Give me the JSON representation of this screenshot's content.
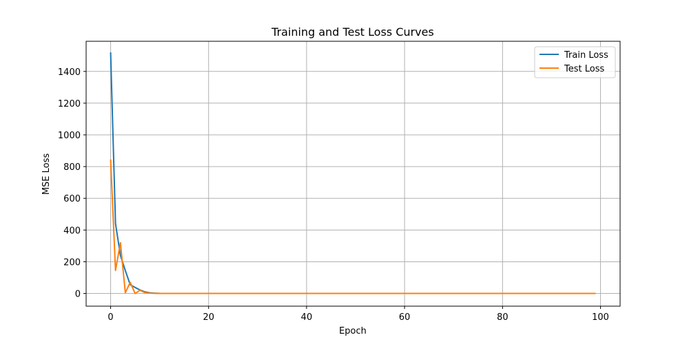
{
  "chart_data": {
    "type": "line",
    "title": "Training and Test Loss Curves",
    "xlabel": "Epoch",
    "ylabel": "MSE Loss",
    "xlim": [
      -5,
      104
    ],
    "ylim": [
      -80,
      1590
    ],
    "xticks": [
      0,
      20,
      40,
      60,
      80,
      100
    ],
    "yticks": [
      0,
      200,
      400,
      600,
      800,
      1000,
      1200,
      1400
    ],
    "grid": true,
    "legend_position": "top-right",
    "series": [
      {
        "name": "Train Loss",
        "color": "#1f77b4",
        "x": [
          0,
          1,
          2,
          3,
          4,
          5,
          6,
          7,
          8,
          9,
          10,
          12,
          15,
          20,
          30,
          40,
          50,
          60,
          70,
          80,
          90,
          99
        ],
        "y": [
          1520,
          440,
          240,
          145,
          55,
          38,
          22,
          10,
          4,
          2,
          1,
          0.5,
          0.3,
          0.2,
          0.1,
          0.1,
          0.1,
          0.1,
          0.1,
          0.1,
          0.1,
          0.1
        ]
      },
      {
        "name": "Test Loss",
        "color": "#ff7f0e",
        "x": [
          0,
          1,
          2,
          3,
          4,
          5,
          6,
          7,
          8,
          9,
          10,
          12,
          15,
          20,
          30,
          40,
          50,
          60,
          70,
          80,
          90,
          99
        ],
        "y": [
          845,
          145,
          320,
          5,
          70,
          0,
          20,
          5,
          2,
          1,
          0.5,
          0.3,
          0.2,
          0.1,
          0.1,
          0.1,
          0.1,
          0.1,
          0.1,
          0.1,
          0.1,
          0.1
        ]
      }
    ]
  }
}
